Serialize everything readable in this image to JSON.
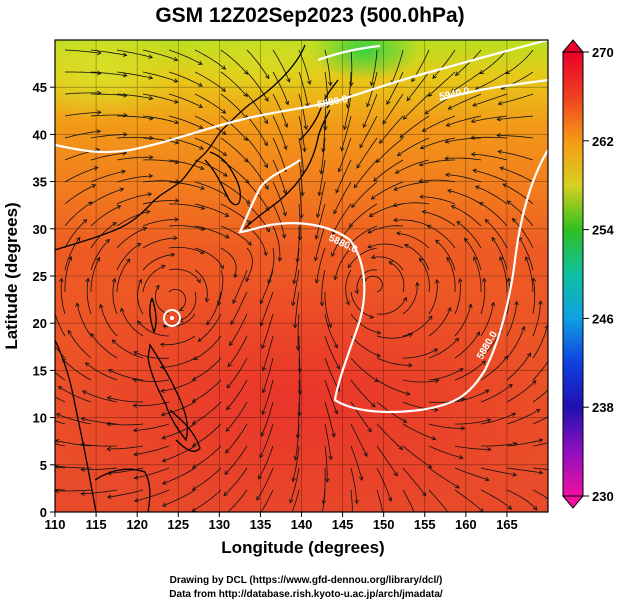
{
  "title": "GSM 12Z02Sep2023 (500.0hPa)",
  "xlabel": "Longitude (degrees)",
  "ylabel": "Latitude  (degrees)",
  "x_ticks": [
    "110",
    "115",
    "120",
    "125",
    "130",
    "135",
    "140",
    "145",
    "150",
    "155",
    "160",
    "165"
  ],
  "y_ticks": [
    "0",
    "5",
    "10",
    "15",
    "20",
    "25",
    "30",
    "35",
    "40",
    "45"
  ],
  "colorbar": {
    "ticks": [
      "270",
      "262",
      "254",
      "246",
      "238",
      "230"
    ],
    "colors": [
      "#e8002a",
      "#f05a1e",
      "#f59a14",
      "#d8d020",
      "#40c020",
      "#10b0c8",
      "#1060e0",
      "#2010c0",
      "#9010c0",
      "#e010a0"
    ]
  },
  "contour_labels": [
    "5880.0",
    "5880.0",
    "5940.0",
    "5880.0"
  ],
  "credits": {
    "line1": "Drawing by DCL (https://www.gfd-dennou.org/library/dcl/)",
    "line2": "Data from http://database.rish.kyoto-u.ac.jp/arch/jmadata/"
  },
  "chart_data": {
    "type": "heatmap",
    "title": "GSM 12Z02Sep2023 (500.0hPa)",
    "xlabel": "Longitude (degrees)",
    "ylabel": "Latitude  (degrees)",
    "xlim": [
      110,
      170
    ],
    "ylim": [
      0,
      50
    ],
    "colorbar_range": [
      230,
      270
    ],
    "colorbar_ticks": [
      230,
      238,
      246,
      254,
      262,
      270
    ],
    "contour_levels": [
      5880,
      5940
    ],
    "vortex_center": {
      "lon": 124.5,
      "lat": 22.5
    },
    "approx_field": "temperature-like shading ~266-269 in tropics, ~257-262 north of 40N, streamlines overlay"
  }
}
